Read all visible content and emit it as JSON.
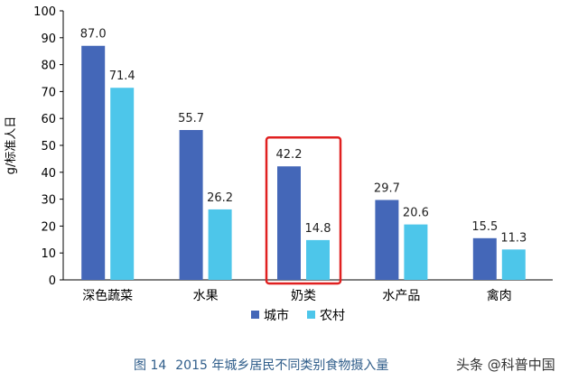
{
  "chart_data": {
    "type": "bar",
    "categories": [
      "深色蔬菜",
      "水果",
      "奶类",
      "水产品",
      "禽肉"
    ],
    "series": [
      {
        "name": "城市",
        "values": [
          87.0,
          55.7,
          42.2,
          29.7,
          15.5
        ]
      },
      {
        "name": "农村",
        "values": [
          71.4,
          26.2,
          14.8,
          20.6,
          11.3
        ]
      }
    ],
    "value_labels": [
      [
        "87.0",
        "55.7",
        "42.2",
        "29.7",
        "15.5"
      ],
      [
        "71.4",
        "26.2",
        "14.8",
        "20.6",
        "11.3"
      ]
    ],
    "ylabel": "g/标准人日",
    "ylim": [
      0,
      100
    ],
    "yticks": [
      0,
      10,
      20,
      30,
      40,
      50,
      60,
      70,
      80,
      90,
      100
    ],
    "legend_position": "bottom-center",
    "highlighted_category": "奶类",
    "colors": {
      "城市": "#4467b8",
      "农村": "#4dc6ea",
      "highlight": "#e02020",
      "axis": "#000000"
    }
  },
  "caption": {
    "label": "图 14",
    "text": "2015 年城乡居民不同类别食物摄入量"
  },
  "watermark": "头条 @科普中国"
}
